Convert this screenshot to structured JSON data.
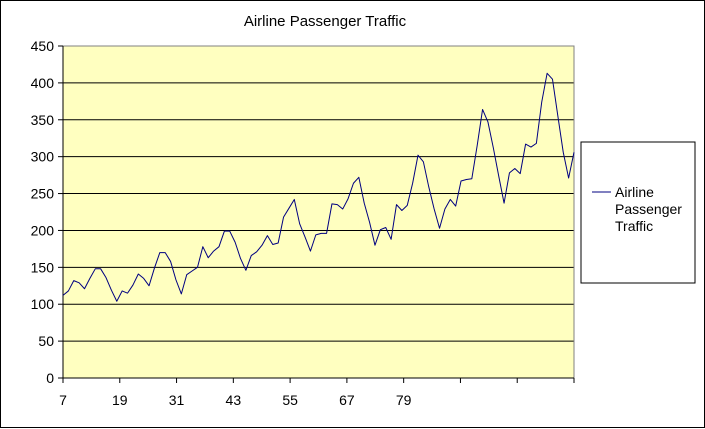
{
  "chart_data": {
    "type": "line",
    "title": "Airline Passenger Traffic",
    "xlabel": "",
    "ylabel": "",
    "ylim": [
      0,
      450
    ],
    "yticks": [
      0,
      50,
      100,
      150,
      200,
      250,
      300,
      350,
      400,
      450
    ],
    "xticks": [
      "7",
      "19",
      "31",
      "43",
      "55",
      "67",
      "79",
      "",
      "",
      ""
    ],
    "x_start": 7,
    "grid": true,
    "legend_position": "right",
    "plot_background": "#FFFFC0",
    "series_color": "#000080",
    "series": [
      {
        "name": "Airline Passenger Traffic",
        "values": [
          112,
          118,
          132,
          129,
          121,
          135,
          148,
          148,
          136,
          119,
          104,
          118,
          115,
          126,
          141,
          135,
          125,
          149,
          170,
          170,
          158,
          133,
          114,
          140,
          145,
          150,
          178,
          163,
          172,
          178,
          199,
          199,
          184,
          162,
          146,
          166,
          171,
          180,
          193,
          181,
          183,
          218,
          230,
          242,
          209,
          191,
          172,
          194,
          196,
          196,
          236,
          235,
          229,
          243,
          264,
          272,
          237,
          211,
          180,
          201,
          204,
          188,
          235,
          227,
          234,
          264,
          302,
          293,
          259,
          229,
          203,
          229,
          242,
          233,
          267,
          269,
          270,
          315,
          364,
          347,
          312,
          274,
          237,
          278,
          284,
          277,
          317,
          313,
          318,
          374,
          413,
          405,
          355,
          306,
          271,
          306
        ]
      }
    ]
  }
}
